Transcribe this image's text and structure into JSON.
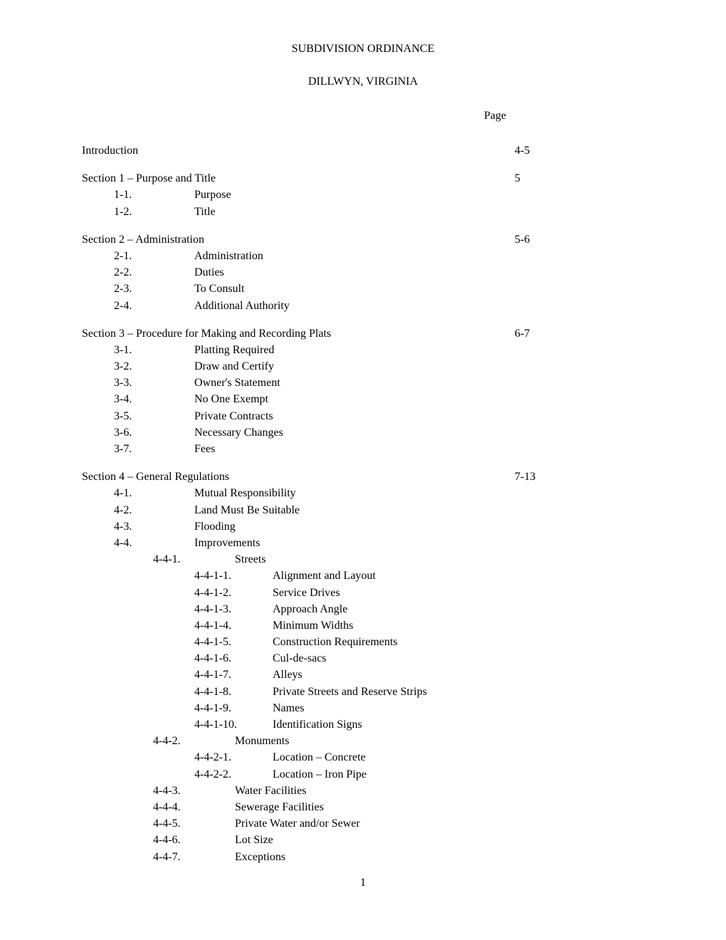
{
  "title": "SUBDIVISION ORDINANCE",
  "subtitle": "DILLWYN, VIRGINIA",
  "page_header": "Page",
  "page_number": "1",
  "toc": [
    {
      "heading": "Introduction",
      "page": "4-5",
      "subs": []
    },
    {
      "heading": "Section 1 – Purpose and Title",
      "page": "5",
      "subs": [
        {
          "num": "1-1.",
          "title": "Purpose"
        },
        {
          "num": "1-2.",
          "title": "Title"
        }
      ]
    },
    {
      "heading": "Section 2 – Administration",
      "page": "5-6",
      "subs": [
        {
          "num": "2-1.",
          "title": "Administration"
        },
        {
          "num": "2-2.",
          "title": "Duties"
        },
        {
          "num": "2-3.",
          "title": "To Consult"
        },
        {
          "num": "2-4.",
          "title": "Additional Authority"
        }
      ]
    },
    {
      "heading": "Section 3 – Procedure for Making and Recording Plats",
      "page": "6-7",
      "subs": [
        {
          "num": "3-1.",
          "title": "Platting Required"
        },
        {
          "num": "3-2.",
          "title": "Draw and Certify"
        },
        {
          "num": "3-3.",
          "title": "Owner's Statement"
        },
        {
          "num": "3-4.",
          "title": "No One Exempt"
        },
        {
          "num": "3-5.",
          "title": "Private Contracts"
        },
        {
          "num": "3-6.",
          "title": "Necessary Changes"
        },
        {
          "num": "3-7.",
          "title": "Fees"
        }
      ]
    },
    {
      "heading": "Section 4 – General Regulations",
      "page": "7-13",
      "subs": [
        {
          "num": "4-1.",
          "title": "Mutual Responsibility"
        },
        {
          "num": "4-2.",
          "title": "Land Must Be Suitable"
        },
        {
          "num": "4-3.",
          "title": "Flooding"
        },
        {
          "num": "4-4.",
          "title": "Improvements"
        }
      ],
      "subs2": [
        {
          "num": "4-4-1.",
          "title": "Streets",
          "subs3": [
            {
              "num": "4-4-1-1.",
              "title": "Alignment and Layout"
            },
            {
              "num": "4-4-1-2.",
              "title": "Service Drives"
            },
            {
              "num": "4-4-1-3.",
              "title": "Approach Angle"
            },
            {
              "num": "4-4-1-4.",
              "title": "Minimum Widths"
            },
            {
              "num": "4-4-1-5.",
              "title": "Construction Requirements"
            },
            {
              "num": "4-4-1-6.",
              "title": "Cul-de-sacs"
            },
            {
              "num": "4-4-1-7.",
              "title": "Alleys"
            },
            {
              "num": "4-4-1-8.",
              "title": "Private Streets and Reserve Strips"
            },
            {
              "num": "4-4-1-9.",
              "title": "Names"
            },
            {
              "num": "4-4-1-10.",
              "title": "Identification Signs"
            }
          ]
        },
        {
          "num": "4-4-2.",
          "title": "Monuments",
          "subs3": [
            {
              "num": "4-4-2-1.",
              "title": "Location – Concrete"
            },
            {
              "num": "4-4-2-2.",
              "title": "Location – Iron Pipe"
            }
          ]
        },
        {
          "num": "4-4-3.",
          "title": "Water Facilities",
          "subs3": []
        },
        {
          "num": "4-4-4.",
          "title": "Sewerage Facilities",
          "subs3": []
        },
        {
          "num": "4-4-5.",
          "title": "Private Water and/or Sewer",
          "subs3": []
        },
        {
          "num": "4-4-6.",
          "title": "Lot Size",
          "subs3": []
        },
        {
          "num": "4-4-7.",
          "title": "Exceptions",
          "subs3": []
        }
      ]
    }
  ]
}
